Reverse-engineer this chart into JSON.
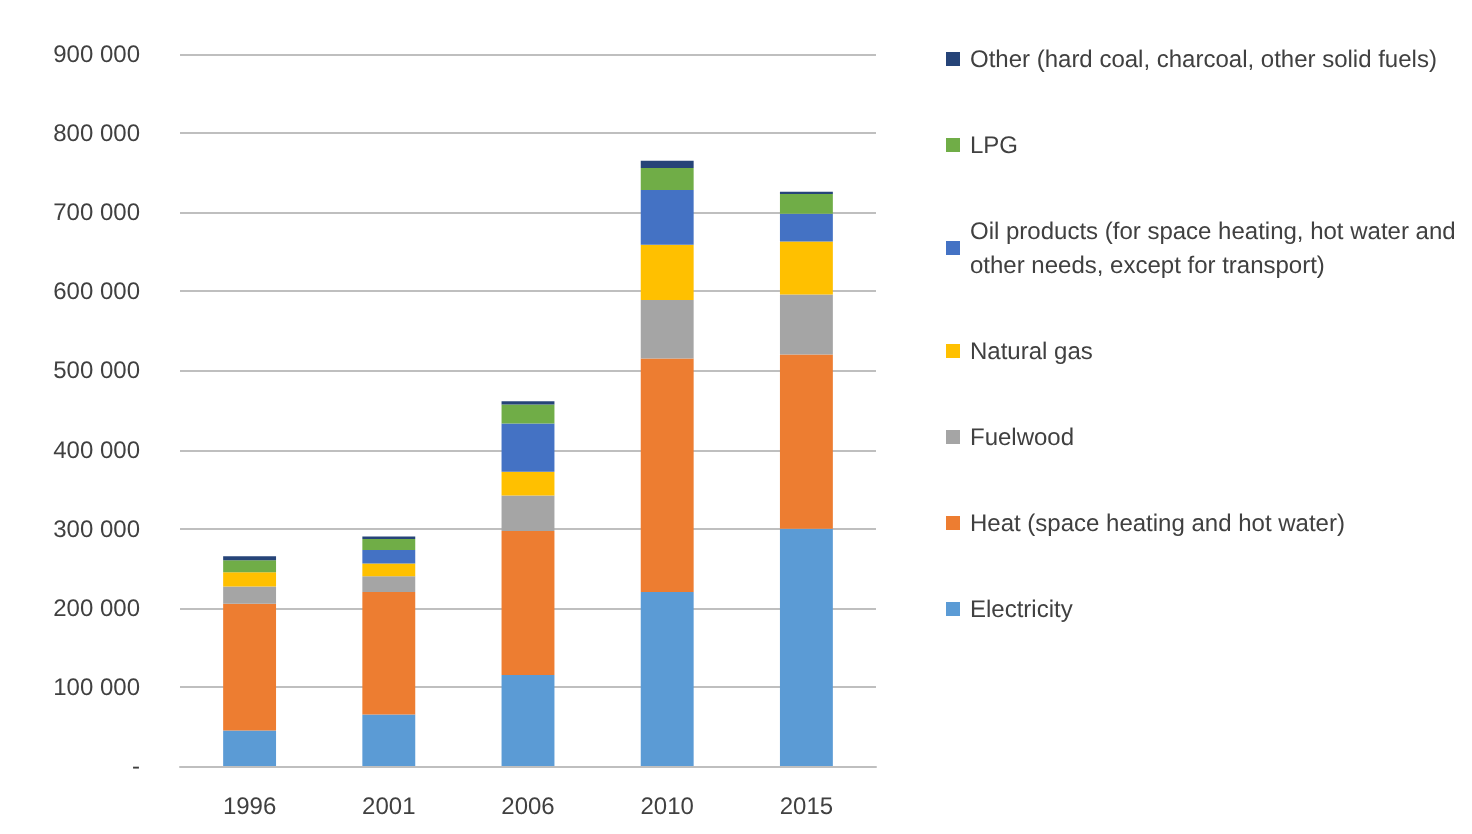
{
  "chart_data": {
    "type": "bar",
    "stacked": true,
    "categories": [
      "1996",
      "2001",
      "2006",
      "2010",
      "2015"
    ],
    "series": [
      {
        "name": "Electricity",
        "color": "#5b9bd5",
        "values": [
          45000,
          65000,
          115000,
          220000,
          300000
        ]
      },
      {
        "name": "Heat (space heating and hot water)",
        "color": "#ed7d31",
        "values": [
          160000,
          155000,
          182000,
          295000,
          220000
        ]
      },
      {
        "name": "Fuelwood",
        "color": "#a5a5a5",
        "values": [
          22000,
          20000,
          45000,
          74000,
          76000
        ]
      },
      {
        "name": "Natural gas",
        "color": "#ffc000",
        "values": [
          18000,
          16000,
          30000,
          70000,
          67000
        ]
      },
      {
        "name": "Oil products (for space heating, hot water and other needs, except for transport)",
        "color": "#4472c4",
        "values": [
          0,
          17000,
          61000,
          69000,
          35000
        ]
      },
      {
        "name": "LPG",
        "color": "#70ad47",
        "values": [
          15000,
          14000,
          24000,
          28000,
          25000
        ]
      },
      {
        "name": "Other (hard coal, charcoal, other solid fuels)",
        "color": "#264478",
        "values": [
          5000,
          3000,
          4000,
          9000,
          3000
        ]
      }
    ],
    "ylim": [
      0,
      900000
    ],
    "yticks": [
      {
        "value": 0,
        "label": "-"
      },
      {
        "value": 100000,
        "label": "100 000"
      },
      {
        "value": 200000,
        "label": "200 000"
      },
      {
        "value": 300000,
        "label": "300 000"
      },
      {
        "value": 400000,
        "label": "400 000"
      },
      {
        "value": 500000,
        "label": "500 000"
      },
      {
        "value": 600000,
        "label": "600 000"
      },
      {
        "value": 700000,
        "label": "700 000"
      },
      {
        "value": 800000,
        "label": "800 000"
      },
      {
        "value": 900000,
        "label": "900 000"
      }
    ],
    "grid": "y",
    "legend": "right"
  }
}
